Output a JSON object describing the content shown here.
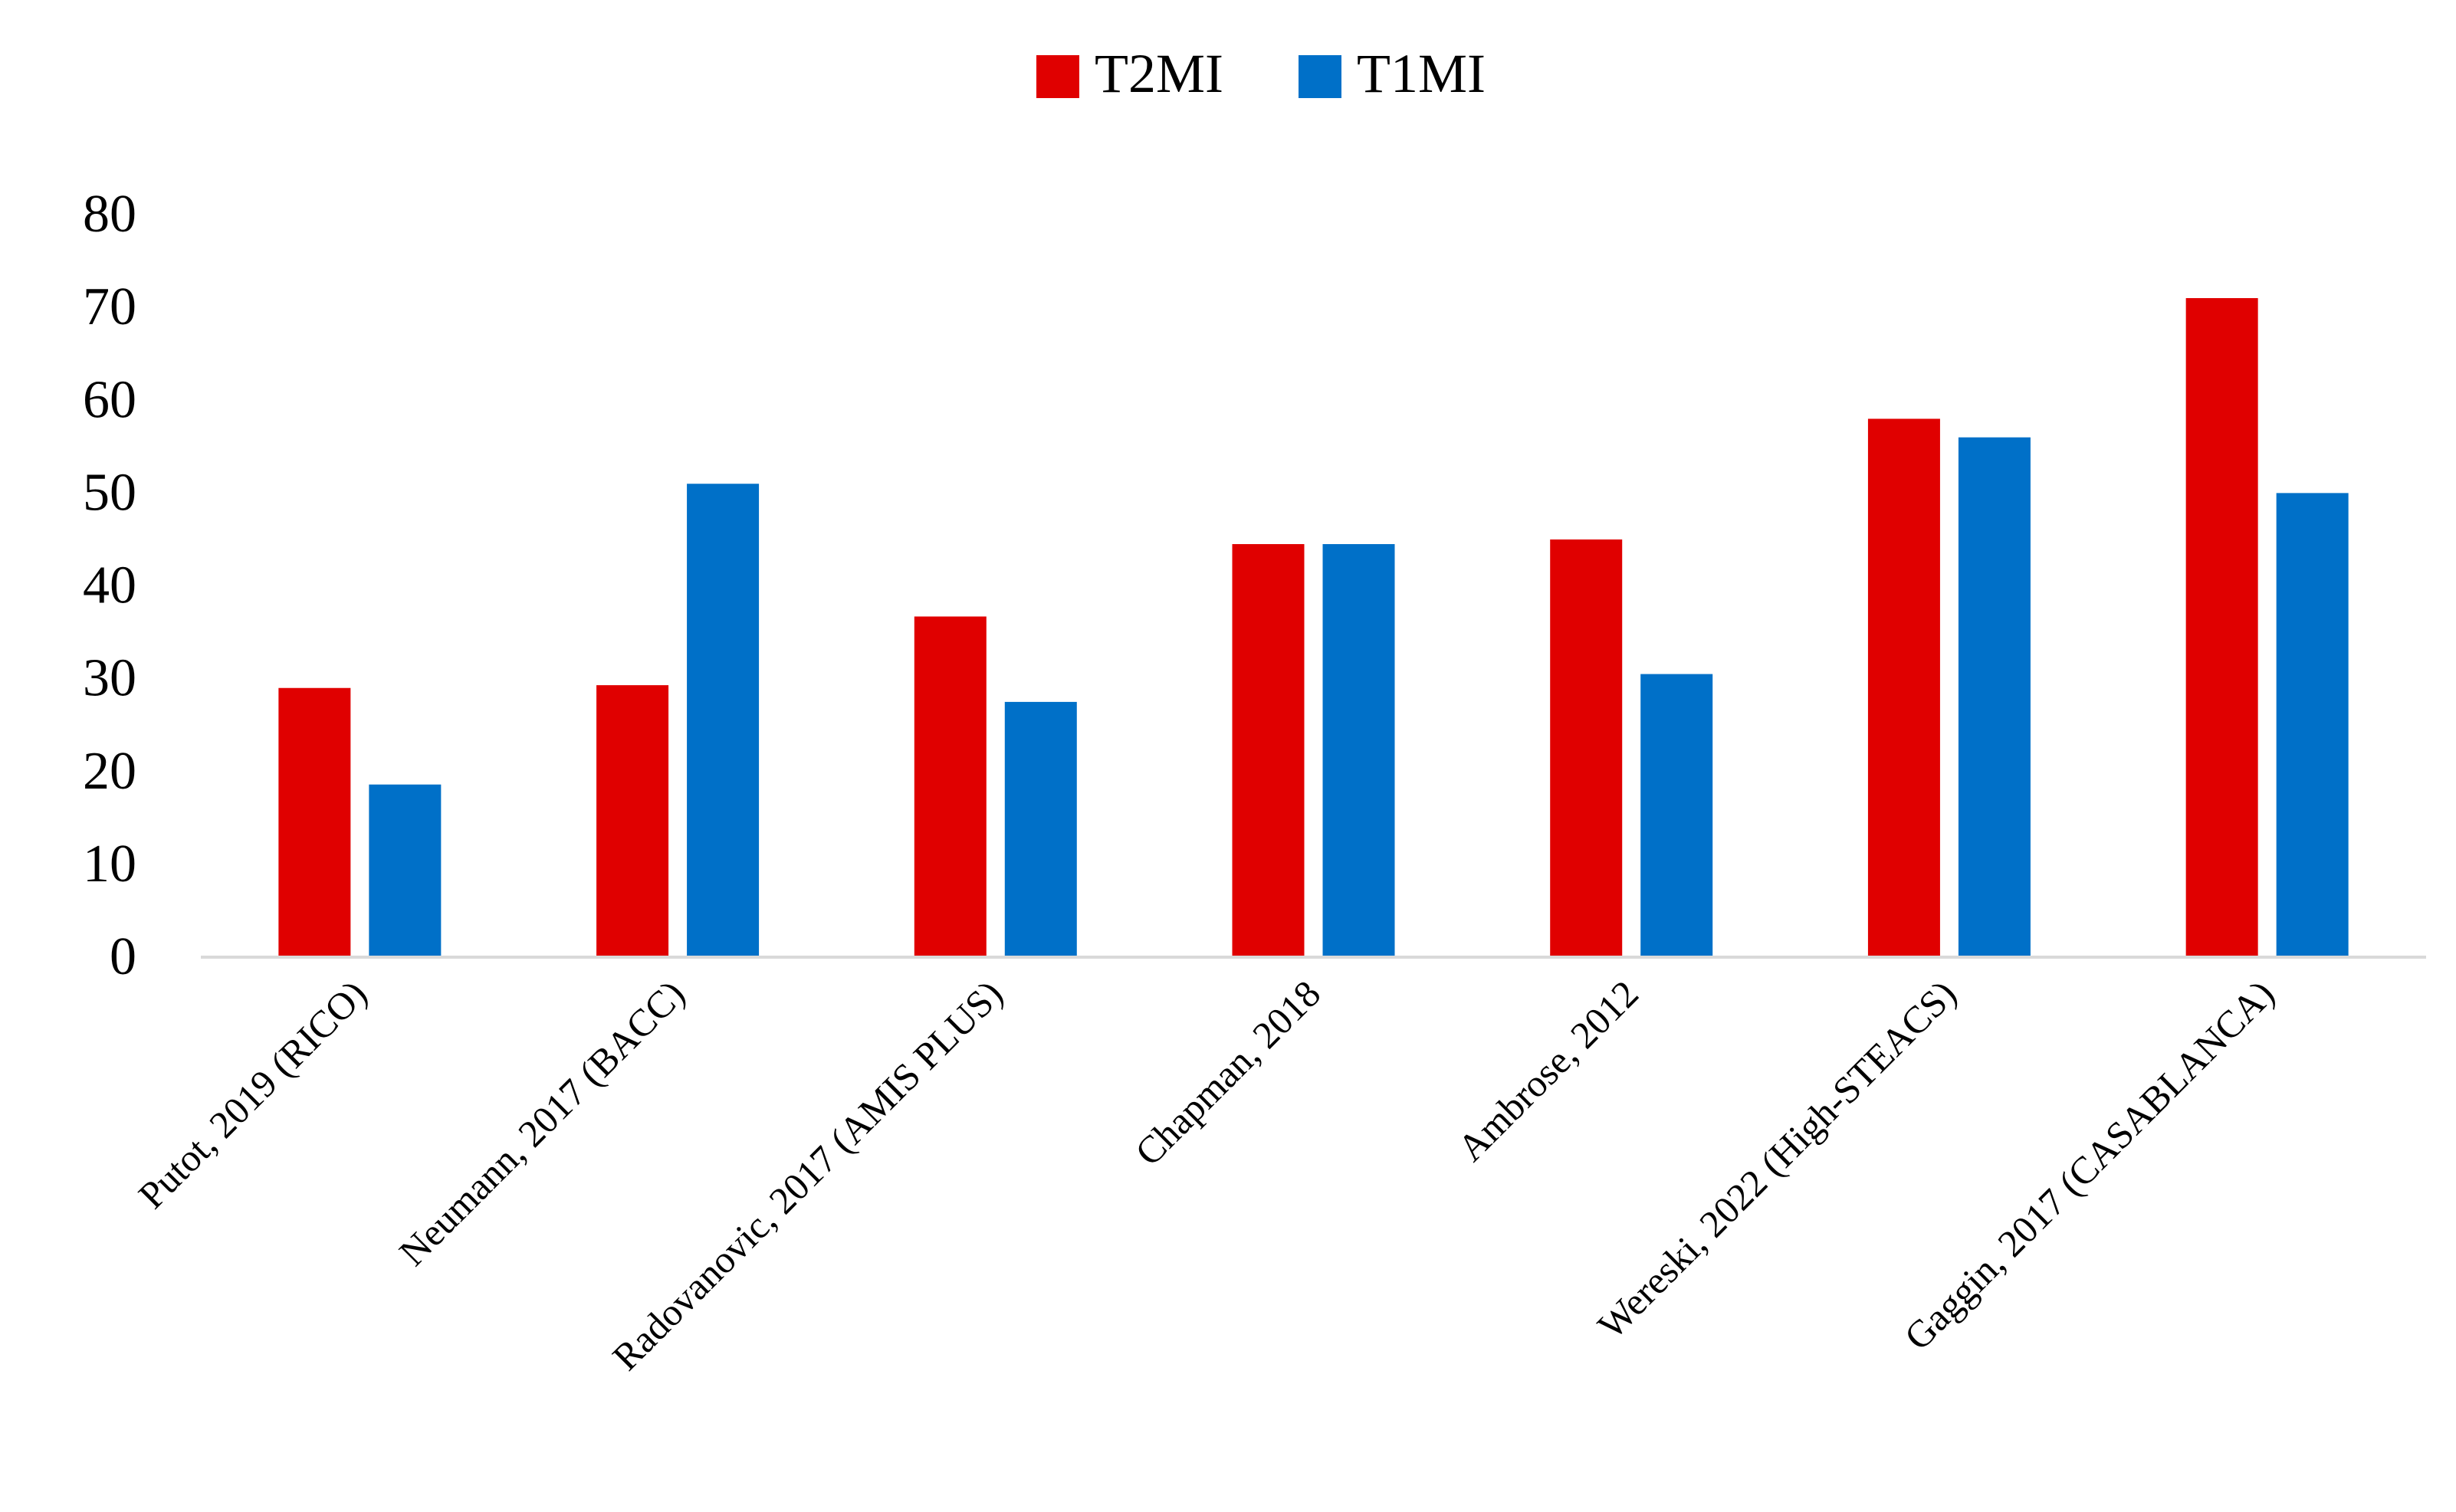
{
  "chart_data": {
    "type": "bar",
    "title": "",
    "xlabel": "",
    "ylabel": "",
    "ylim": [
      0,
      80
    ],
    "yticks": [
      "0",
      "10",
      "20",
      "30",
      "40",
      "50",
      "60",
      "70",
      "80"
    ],
    "grid": false,
    "legend_position": "top-center",
    "categories": [
      "Putot, 2019 (RICO)",
      "Neumann, 2017 (BACC)",
      "Radovanovic, 2017 (AMIS PLUS)",
      "Chapman, 2018",
      "Ambrose, 2012",
      "Wereski, 2022 (High-STEACS)",
      "Gaggin, 2017 (CASABLANCA)"
    ],
    "series": [
      {
        "name": "T2MI",
        "color": "#E00000",
        "values": [
          29,
          29.3,
          36.7,
          44.5,
          45,
          58,
          71
        ]
      },
      {
        "name": "T1MI",
        "color": "#0070C8",
        "values": [
          18.6,
          51,
          27.5,
          44.5,
          30.5,
          56,
          50
        ]
      }
    ],
    "axis_line_color": "#D9D9D9"
  }
}
